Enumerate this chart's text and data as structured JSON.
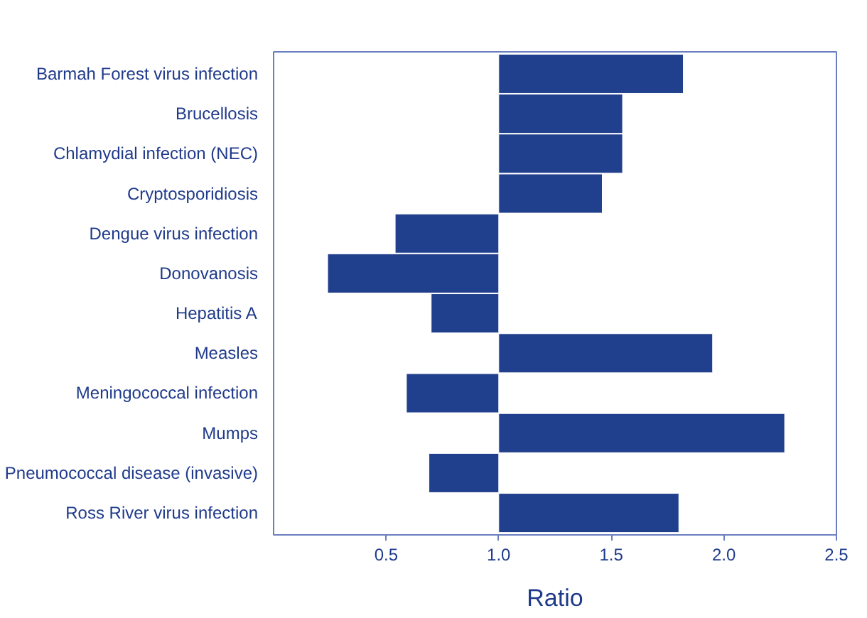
{
  "chart_data": {
    "type": "bar",
    "orientation": "horizontal",
    "xlabel": "Ratio",
    "categories": [
      "Barmah Forest virus infection",
      "Brucellosis",
      "Chlamydial infection (NEC)",
      "Cryptosporidiosis",
      "Dengue virus infection",
      "Donovanosis",
      "Hepatitis A",
      "Measles",
      "Meningococcal infection",
      "Mumps",
      "Pneumococcal disease (invasive)",
      "Ross River virus infection"
    ],
    "base": [
      1,
      1,
      1,
      1,
      1,
      1,
      1,
      1,
      1,
      1,
      1,
      1
    ],
    "values": [
      0.82,
      0.55,
      0.55,
      0.46,
      -0.46,
      -0.76,
      -0.3,
      0.95,
      -0.41,
      1.27,
      -0.31,
      0.8
    ],
    "color": "#203f8c",
    "xlim": [
      0,
      2.5
    ],
    "xticks": [
      0.5,
      {
        "value": 1,
        "label": "1.0"
      },
      1.5,
      {
        "value": 2,
        "label": "2.0"
      },
      2.5
    ],
    "grid": false
  }
}
